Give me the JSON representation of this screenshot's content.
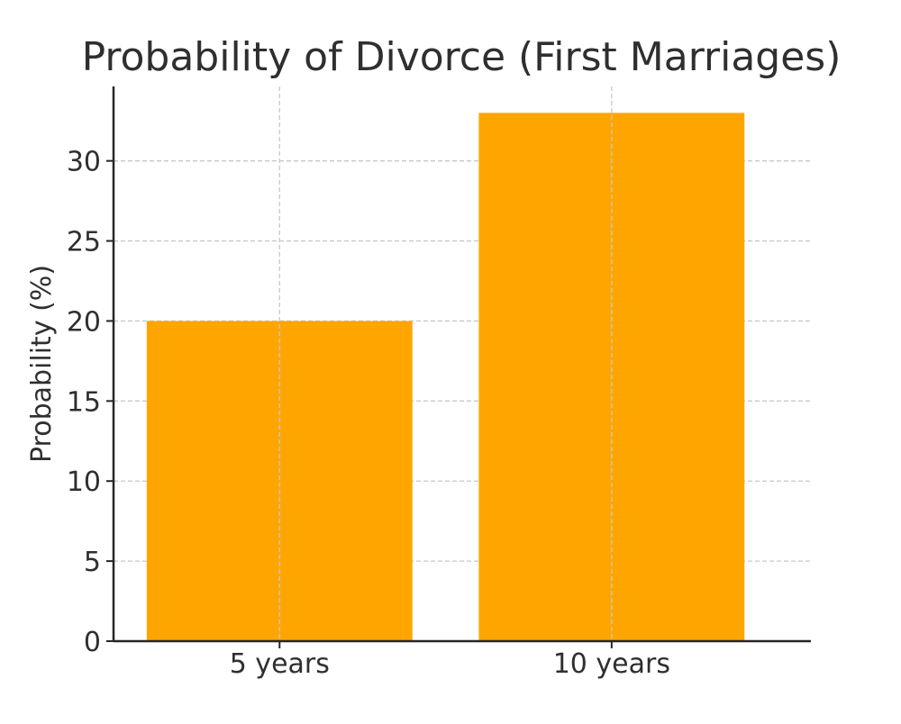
{
  "chart_data": {
    "type": "bar",
    "title": "Probability of Divorce (First Marriages)",
    "xlabel": "",
    "ylabel": "Probability (%)",
    "categories": [
      "5 years",
      "10 years"
    ],
    "values": [
      20,
      33
    ],
    "ylim": [
      0,
      34.65
    ],
    "yticks": [
      0,
      5,
      10,
      15,
      20,
      25,
      30
    ],
    "grid": true,
    "legend": "none",
    "bar_color": "#FFA500"
  }
}
